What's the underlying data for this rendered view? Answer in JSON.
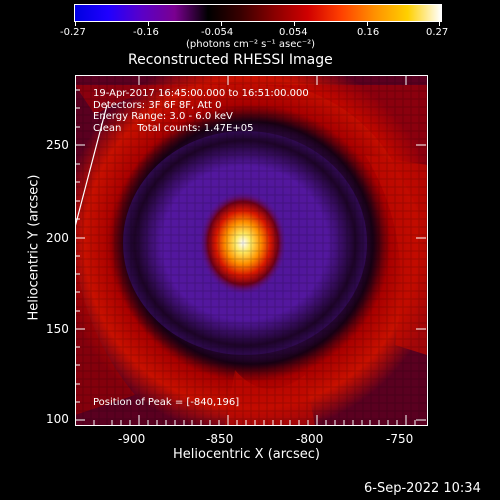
{
  "colorbar": {
    "tick_labels": [
      "-0.27",
      "-0.16",
      "-0.054",
      "0.054",
      "0.16",
      "0.27"
    ],
    "unit_label": "(photons cm⁻² s⁻¹ asec⁻²)",
    "gradient_colors": [
      "#0000e0",
      "#2000ff",
      "#5a00c8",
      "#7a0090",
      "#000000",
      "#3a0000",
      "#8a0000",
      "#d00000",
      "#ff4000",
      "#ff9000",
      "#ffd000",
      "#ffffff"
    ]
  },
  "image": {
    "title": "Reconstructed RHESSI Image",
    "info_lines": [
      "19-Apr-2017 16:45:00.000 to 16:51:00.000",
      "Detectors: 3F 6F 8F, Att 0",
      "Energy Range: 3.0 - 6.0 keV",
      "Clean     Total counts: 1.47E+05"
    ],
    "peak_label": "Position of Peak = [-840,196]",
    "x_axis": {
      "label": "Heliocentric X (arcsec)",
      "ticks": [
        "-900",
        "-850",
        "-800",
        "-750"
      ]
    },
    "y_axis": {
      "label": "Heliocentric Y (arcsec)",
      "ticks": [
        "250",
        "200",
        "150",
        "100"
      ]
    },
    "colors": {
      "ring_red": "#b40000",
      "ring_dark": "#2a0018",
      "purple": "#5a14a0",
      "core": "#ffffff"
    }
  },
  "footer": {
    "timestamp": "6-Sep-2022 10:34"
  }
}
